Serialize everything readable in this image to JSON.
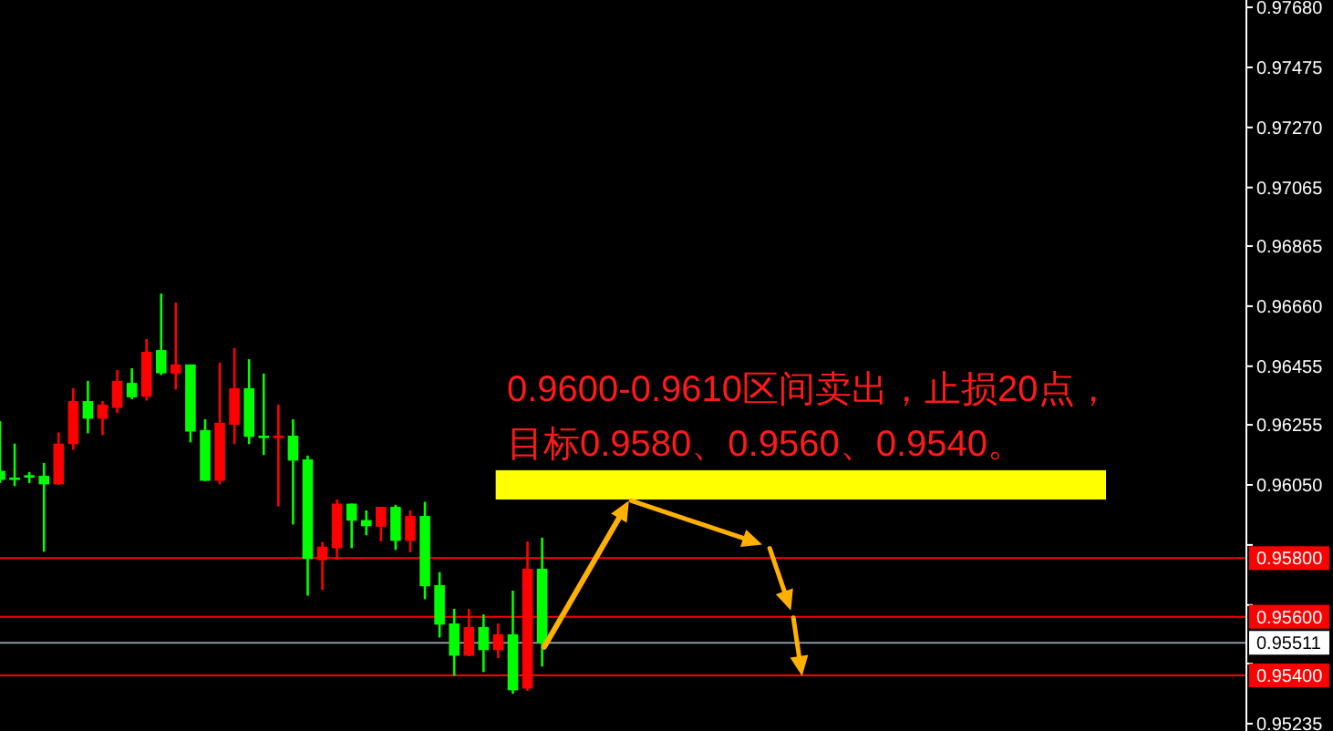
{
  "chart_data": {
    "type": "candlestick",
    "categories": [
      null,
      null,
      null,
      null,
      null,
      null,
      null,
      null,
      null,
      null,
      null,
      null,
      null,
      null,
      null,
      null,
      null,
      null,
      null,
      null,
      null,
      null,
      null,
      null,
      null,
      null,
      null,
      null,
      null,
      null,
      null,
      null,
      null,
      null,
      null,
      null,
      null,
      null,
      null,
      null,
      null,
      null,
      null,
      null,
      null,
      null,
      null,
      null,
      null,
      null,
      null,
      null,
      null,
      null,
      null,
      null,
      null,
      null,
      null,
      null,
      null,
      null,
      null,
      null,
      null,
      null,
      null,
      null,
      null,
      null,
      null,
      null,
      null,
      null,
      null,
      null,
      null,
      null,
      null,
      null,
      null,
      null,
      null,
      null,
      null
    ],
    "ohlc": [
      [
        0.96098,
        0.96268,
        0.96056,
        0.96067
      ],
      [
        0.96075,
        0.96191,
        0.96046,
        0.96071
      ],
      [
        0.96083,
        0.96094,
        0.96056,
        0.96079
      ],
      [
        0.96081,
        0.96125,
        0.95822,
        0.96052
      ],
      [
        0.96052,
        0.96229,
        0.9605,
        0.96191
      ],
      [
        0.96189,
        0.9638,
        0.9617,
        0.96336
      ],
      [
        0.96336,
        0.96405,
        0.96226,
        0.96276
      ],
      [
        0.96276,
        0.96336,
        0.9622,
        0.96324
      ],
      [
        0.96313,
        0.96442,
        0.96295,
        0.96405
      ],
      [
        0.96398,
        0.96448,
        0.96342,
        0.96349
      ],
      [
        0.96351,
        0.96548,
        0.96338,
        0.96504
      ],
      [
        0.9651,
        0.96703,
        0.96425,
        0.96431
      ],
      [
        0.9643,
        0.96672,
        0.96375,
        0.96461
      ],
      [
        0.96461,
        0.96461,
        0.96195,
        0.96232
      ],
      [
        0.96237,
        0.96274,
        0.96063,
        0.96064
      ],
      [
        0.96064,
        0.96467,
        0.96052,
        0.96262
      ],
      [
        0.96255,
        0.96517,
        0.96189,
        0.9638
      ],
      [
        0.9638,
        0.96479,
        0.96189,
        0.96214
      ],
      [
        0.96218,
        0.9643,
        0.96152,
        0.96214
      ],
      [
        0.96214,
        0.96324,
        0.95977,
        0.96218
      ],
      [
        0.96218,
        0.96274,
        0.95915,
        0.96133
      ],
      [
        0.96137,
        0.9615,
        0.95672,
        0.95797
      ],
      [
        0.95793,
        0.95855,
        0.95691,
        0.95839
      ],
      [
        0.95834,
        0.96,
        0.95795,
        0.95986
      ],
      [
        0.95986,
        0.95986,
        0.95834,
        0.95928
      ],
      [
        0.9593,
        0.95963,
        0.95878,
        0.95909
      ],
      [
        0.95907,
        0.95975,
        0.95857,
        0.95975
      ],
      [
        0.95975,
        0.95982,
        0.95828,
        0.95859
      ],
      [
        0.95859,
        0.95963,
        0.9582,
        0.95944
      ],
      [
        0.95944,
        0.95992,
        0.9566,
        0.95704
      ],
      [
        0.95708,
        0.95752,
        0.95529,
        0.95573
      ],
      [
        0.95577,
        0.95627,
        0.95399,
        0.95467
      ],
      [
        0.95467,
        0.95627,
        0.95465,
        0.95565
      ],
      [
        0.95565,
        0.95608,
        0.95411,
        0.95486
      ],
      [
        0.95486,
        0.95577,
        0.95459,
        0.9554
      ],
      [
        0.9554,
        0.95689,
        0.95337,
        0.95349
      ],
      [
        0.95355,
        0.95857,
        0.95347,
        0.95764
      ],
      [
        0.95764,
        0.9587,
        0.9543,
        0.95511
      ],
      null,
      null,
      null,
      null,
      null,
      null,
      null,
      null,
      null,
      null,
      null,
      null,
      null,
      null,
      null,
      null,
      null,
      null,
      null,
      null,
      null,
      null,
      null,
      null,
      null,
      null,
      null,
      null,
      null,
      null,
      null,
      null,
      null,
      null,
      null,
      null,
      null,
      null,
      null,
      null,
      null,
      null,
      null,
      null,
      null,
      null,
      null
    ],
    "colors": [
      "#00ff00",
      "#00ff00",
      "#00ff00",
      "#00ff00",
      "#ff0000",
      "#ff0000",
      "#00ff00",
      "#ff0000",
      "#ff0000",
      "#00ff00",
      "#ff0000",
      "#00ff00",
      "#ff0000",
      "#00ff00",
      "#00ff00",
      "#ff0000",
      "#ff0000",
      "#00ff00",
      "#00ff00",
      "#ff0000",
      "#00ff00",
      "#00ff00",
      "#ff0000",
      "#ff0000",
      "#00ff00",
      "#00ff00",
      "#ff0000",
      "#00ff00",
      "#ff0000",
      "#00ff00",
      "#00ff00",
      "#00ff00",
      "#ff0000",
      "#00ff00",
      "#ff0000",
      "#00ff00",
      "#ff0000",
      "#00ff00",
      null,
      null,
      null,
      null,
      null,
      null,
      null,
      null,
      null,
      null,
      null,
      null,
      null,
      null,
      null,
      null,
      null,
      null,
      null,
      null,
      null,
      null,
      null,
      null,
      null,
      null,
      null,
      null,
      null,
      null,
      null,
      null,
      null,
      null,
      null,
      null,
      null,
      null,
      null,
      null,
      null,
      null,
      null,
      null,
      null,
      null,
      null
    ],
    "ylim": [
      0.9521,
      0.97705
    ],
    "yticks": [
      {
        "value": 0.9768,
        "label": "0.97680"
      },
      {
        "value": 0.97475,
        "label": "0.97475"
      },
      {
        "value": 0.9727,
        "label": "0.97270"
      },
      {
        "value": 0.97065,
        "label": "0.97065"
      },
      {
        "value": 0.96865,
        "label": "0.96865"
      },
      {
        "value": 0.9666,
        "label": "0.96660"
      },
      {
        "value": 0.96455,
        "label": "0.96455"
      },
      {
        "value": 0.96255,
        "label": "0.96255"
      },
      {
        "value": 0.9605,
        "label": "0.96050"
      },
      {
        "value": 0.95845,
        "label": null
      },
      {
        "value": 0.9564,
        "label": null
      },
      {
        "value": 0.9544,
        "label": null
      },
      {
        "value": 0.95235,
        "label": "0.95235"
      }
    ],
    "tick_labels": "y",
    "ref_lines": [
      {
        "axis": "y",
        "value": 0.958,
        "label": "0.95800",
        "color": "#ff0000"
      },
      {
        "axis": "y",
        "value": 0.956,
        "label": "0.95600",
        "color": "#ff0000"
      },
      {
        "axis": "y",
        "value": 0.95511,
        "label": "0.95511",
        "color": "#8898a8"
      },
      {
        "axis": "y",
        "value": 0.954,
        "label": "0.95400",
        "color": "#ff0000"
      }
    ],
    "bands": [
      {
        "axis": "y",
        "from": 0.96,
        "to": 0.961,
        "color": "#ffff00"
      }
    ],
    "annotations": [
      "0.9600-0.9610区间卖出，止损20点，",
      "目标0.9580、0.9560、0.9540。"
    ]
  }
}
